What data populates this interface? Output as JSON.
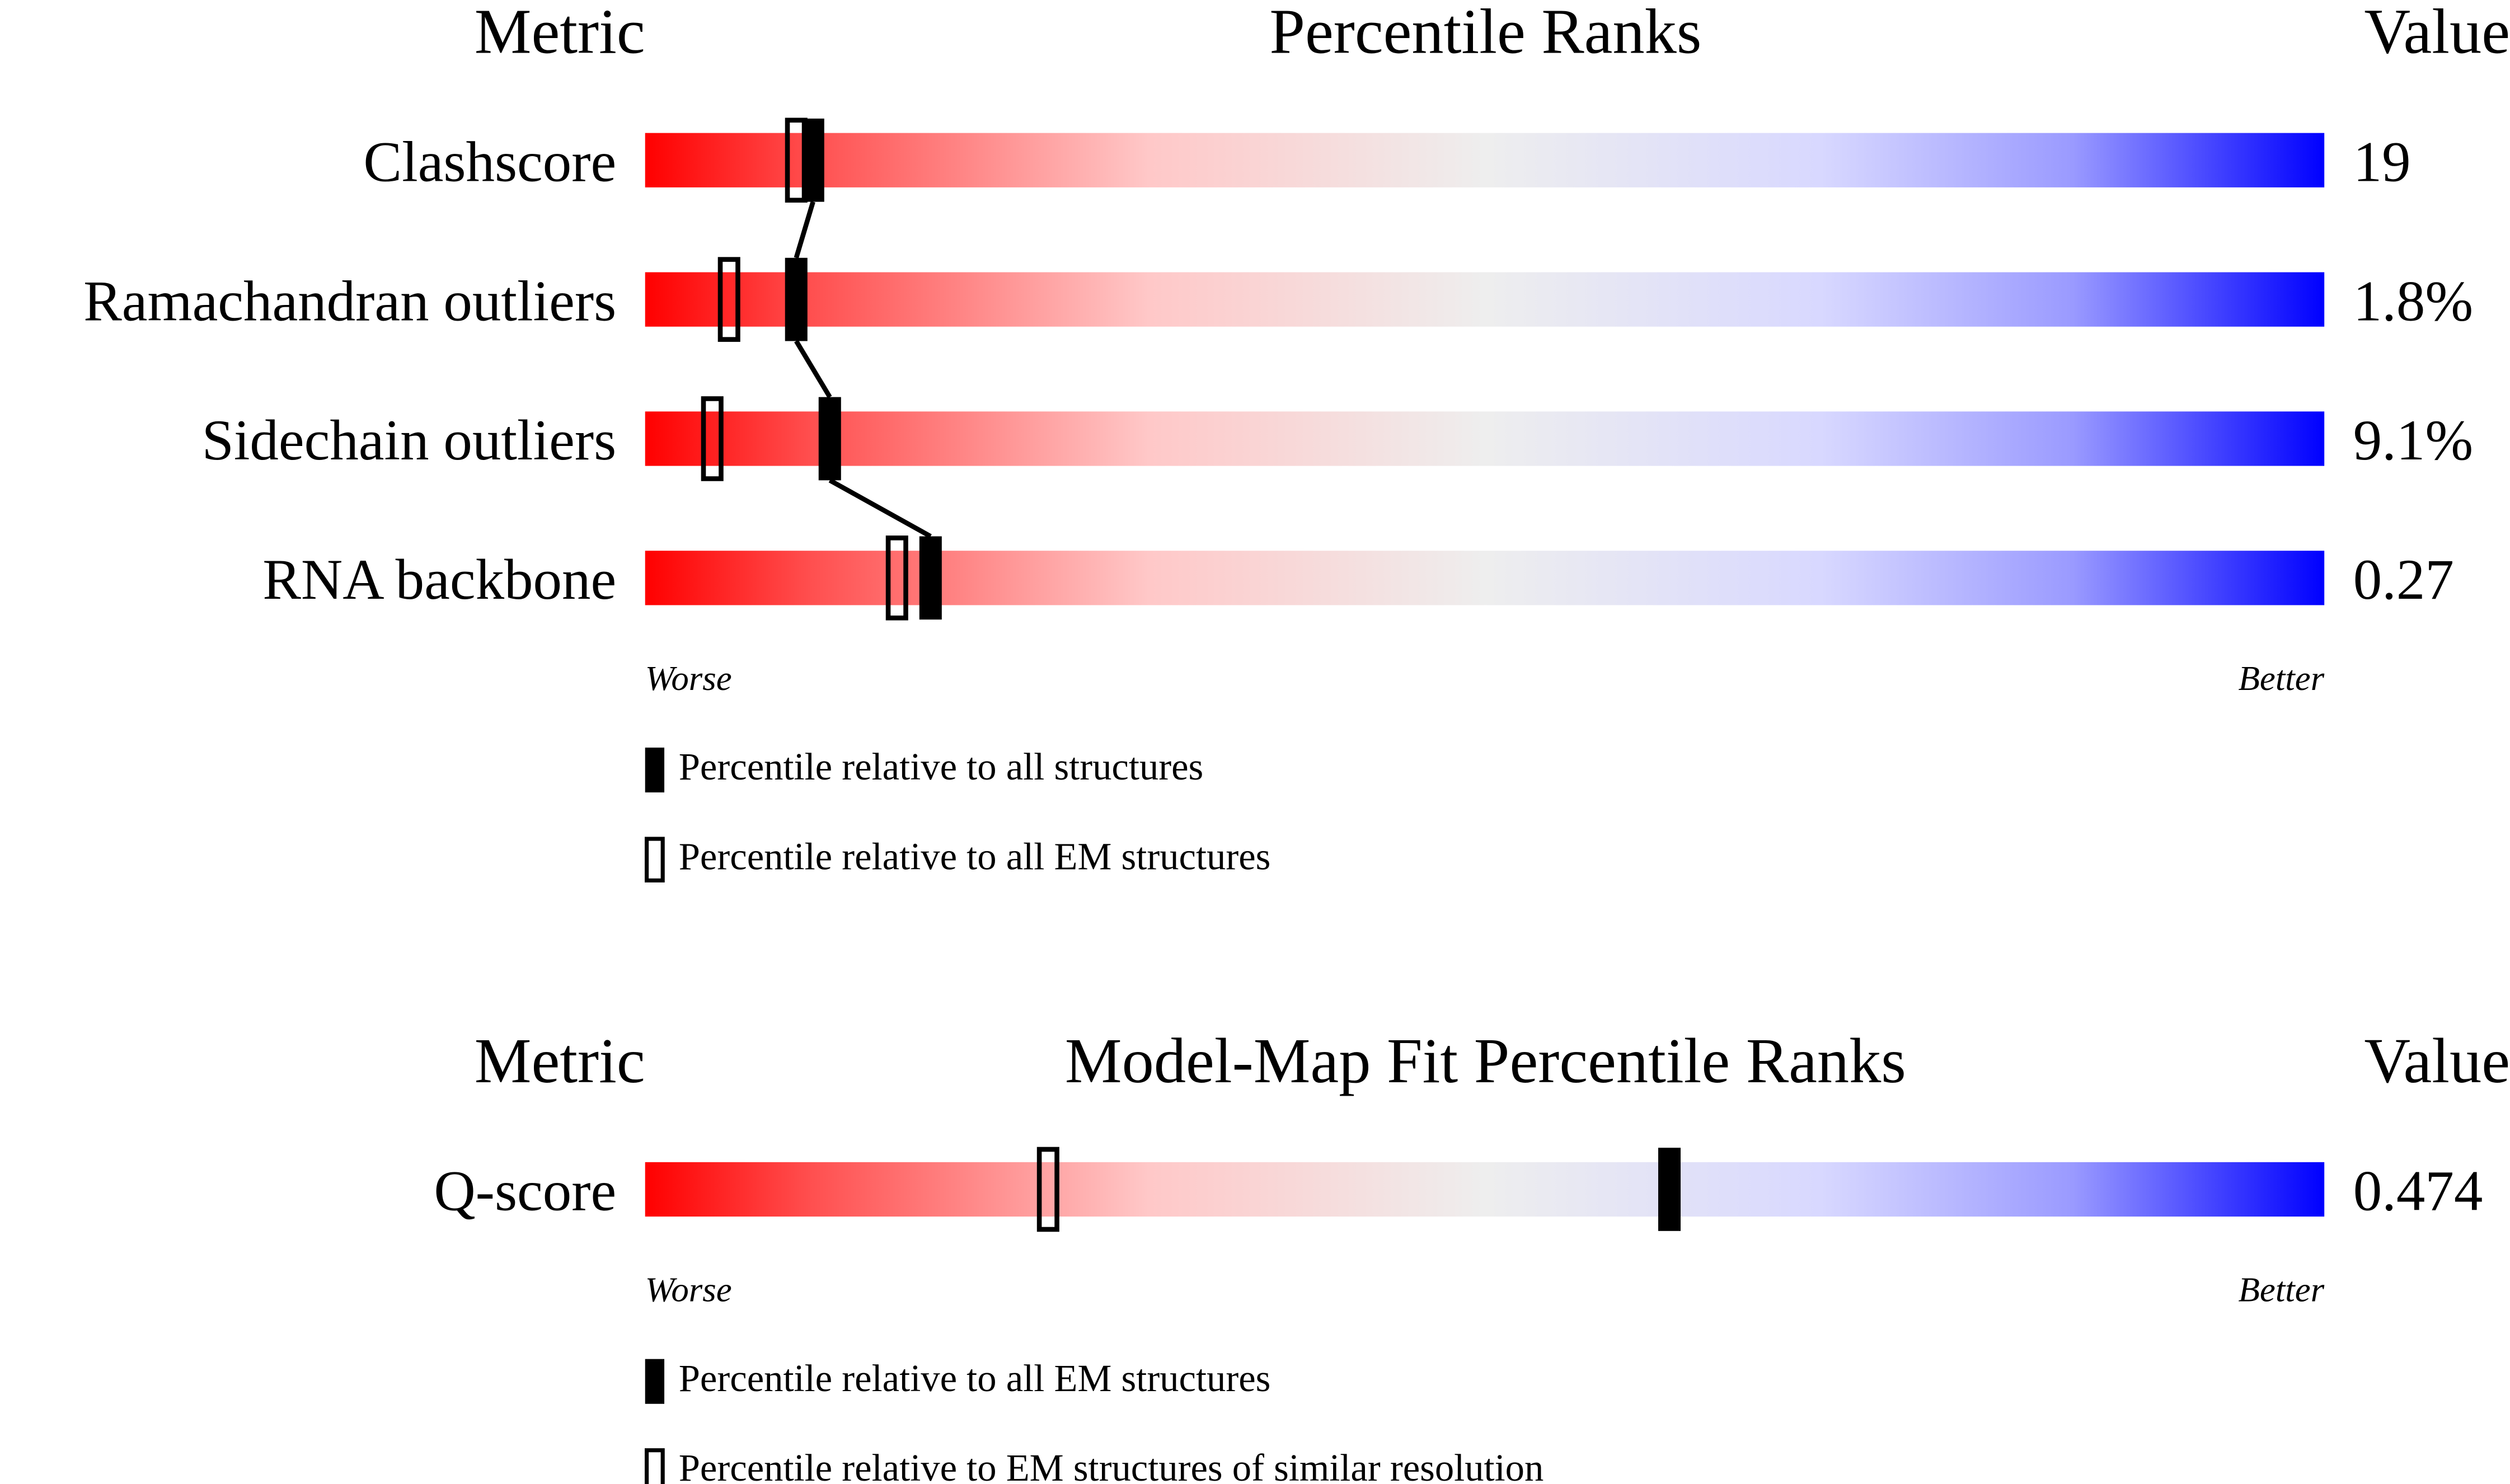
{
  "chart_data": [
    {
      "type": "percentile",
      "header": {
        "metric": "Metric",
        "title": "Percentile Ranks",
        "value": "Value"
      },
      "categories": [
        "Clashscore",
        "Ramachandran outliers",
        "Sidechain outliers",
        "RNA backbone"
      ],
      "metric_values": [
        "19",
        "1.8%",
        "9.1%",
        "0.27"
      ],
      "series": [
        {
          "name": "Percentile relative to all structures",
          "style": "filled",
          "connected": true,
          "values": [
            10,
            9,
            11,
            17
          ]
        },
        {
          "name": "Percentile relative to all EM structures",
          "style": "open",
          "values": [
            9,
            5,
            4,
            15
          ]
        }
      ],
      "xlim": [
        0,
        100
      ],
      "low_label": "Worse",
      "high_label": "Better"
    },
    {
      "type": "percentile",
      "header": {
        "metric": "Metric",
        "title": "Model-Map Fit Percentile Ranks",
        "value": "Value"
      },
      "categories": [
        "Q-score"
      ],
      "metric_values": [
        "0.474"
      ],
      "series": [
        {
          "name": "Percentile relative to all EM structures",
          "style": "filled",
          "values": [
            61
          ]
        },
        {
          "name": "Percentile relative to EM structures of similar resolution",
          "style": "open",
          "values": [
            24
          ]
        }
      ],
      "xlim": [
        0,
        100
      ],
      "low_label": "Worse",
      "high_label": "Better"
    }
  ]
}
